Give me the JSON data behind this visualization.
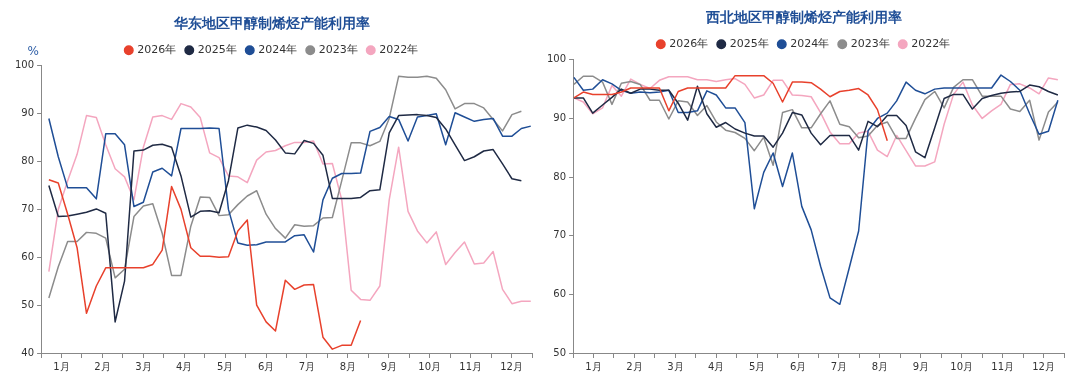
{
  "chart_data": [
    {
      "type": "line",
      "title": "华东地区甲醇制烯烃产能利用率",
      "ylabel": "%",
      "legend": "top",
      "grid": false,
      "marker": "none",
      "line_style": "solid",
      "x": [
        0.19,
        0.42,
        0.65,
        0.88,
        1.11,
        1.35,
        1.58,
        1.81,
        2.04,
        2.27,
        2.5,
        2.73,
        2.96,
        3.19,
        3.42,
        3.66,
        3.89,
        4.12,
        4.35,
        4.58,
        4.81,
        5.04,
        5.27,
        5.5,
        5.73,
        5.97,
        6.2,
        6.43,
        6.66,
        6.89,
        7.12,
        7.35,
        7.58,
        7.81,
        8.04,
        8.28,
        8.51,
        8.74,
        8.97,
        9.2,
        9.43,
        9.66,
        9.89,
        10.12,
        10.35,
        10.59,
        10.82,
        11.05,
        11.28,
        11.51,
        11.74,
        11.97
      ],
      "xlim": [
        0,
        12
      ],
      "xticks": [
        {
          "value": 0,
          "label": null
        },
        {
          "value": 0.5,
          "label": "1月"
        },
        {
          "value": 1,
          "label": null
        },
        {
          "value": 1.5,
          "label": "2月"
        },
        {
          "value": 2,
          "label": null
        },
        {
          "value": 2.5,
          "label": "3月"
        },
        {
          "value": 3,
          "label": null
        },
        {
          "value": 3.5,
          "label": "4月"
        },
        {
          "value": 4,
          "label": null
        },
        {
          "value": 4.5,
          "label": "5月"
        },
        {
          "value": 5,
          "label": null
        },
        {
          "value": 5.5,
          "label": "6月"
        },
        {
          "value": 6,
          "label": null
        },
        {
          "value": 6.5,
          "label": "7月"
        },
        {
          "value": 7,
          "label": null
        },
        {
          "value": 7.5,
          "label": "8月"
        },
        {
          "value": 8,
          "label": null
        },
        {
          "value": 8.5,
          "label": "9月"
        },
        {
          "value": 9,
          "label": null
        },
        {
          "value": 9.5,
          "label": "10月"
        },
        {
          "value": 10,
          "label": null
        },
        {
          "value": 10.5,
          "label": "11月"
        },
        {
          "value": 11,
          "label": null
        },
        {
          "value": 11.5,
          "label": "12月"
        },
        {
          "value": 12,
          "label": null
        }
      ],
      "ylim": [
        40,
        100
      ],
      "yticks": [
        40,
        50,
        60,
        70,
        80,
        90,
        100
      ],
      "series": [
        {
          "name": "2026年",
          "color": "#e8412c",
          "values": [
            76.2,
            75.5,
            69,
            62,
            48.3,
            54,
            57.8,
            57.8,
            57.8,
            57.8,
            57.8,
            58.5,
            61.5,
            74.8,
            70,
            62,
            60.2,
            60.2,
            60,
            60.1,
            65.5,
            67.8,
            50,
            46.5,
            44.6,
            55.2,
            53.3,
            54.2,
            54.3,
            43.3,
            40.8,
            41.6,
            41.6,
            46.8,
            null,
            null,
            null,
            null,
            null,
            null,
            null,
            null,
            null,
            null,
            null,
            null,
            null,
            null,
            null,
            null,
            null,
            null
          ]
        },
        {
          "name": "2025年",
          "color": "#1f2a44",
          "values": [
            75,
            68.5,
            68.6,
            69,
            69.4,
            70.1,
            69.2,
            46.5,
            55,
            82.2,
            82.4,
            83.4,
            83.6,
            83,
            77,
            68.4,
            69.6,
            69.7,
            69.3,
            76,
            87,
            87.6,
            87.2,
            86.5,
            84.5,
            81.8,
            81.6,
            84.4,
            83.8,
            81.3,
            72.3,
            72.3,
            72.3,
            72.5,
            73.9,
            74.1,
            86,
            89.6,
            89.7,
            89.8,
            89.6,
            89.2,
            86.8,
            83.5,
            80.2,
            81,
            82.2,
            82.5,
            79.5,
            76.4,
            76,
            null
          ]
        },
        {
          "name": "2024年",
          "color": "#1f4e96",
          "values": [
            89,
            81,
            74.5,
            74.5,
            74.5,
            72.2,
            85.8,
            85.8,
            83.5,
            70.6,
            71.5,
            77.8,
            78.6,
            77,
            86.9,
            86.9,
            86.9,
            87,
            86.9,
            70,
            63,
            62.5,
            62.6,
            63.2,
            63.2,
            63.2,
            64.5,
            64.7,
            61.1,
            72,
            76.5,
            77.5,
            77.5,
            77.6,
            86.3,
            87.1,
            89.4,
            88.8,
            84.3,
            89.3,
            89.6,
            90,
            83.5,
            90.2,
            89.3,
            88.4,
            88.8,
            89,
            85.3,
            85.3,
            86.9,
            87.4
          ]
        },
        {
          "name": "2023年",
          "color": "#8c8c8c",
          "values": [
            51.5,
            58,
            63.3,
            63.3,
            65.2,
            65,
            64,
            55.7,
            57.5,
            68.5,
            70.7,
            71.2,
            65,
            56.2,
            56.2,
            66.5,
            72.6,
            72.5,
            68.7,
            68.9,
            71,
            72.8,
            73.9,
            69,
            66,
            64,
            66.8,
            66.5,
            66.6,
            68.2,
            68.3,
            76,
            83.9,
            83.9,
            83.3,
            84.2,
            89,
            97.8,
            97.6,
            97.6,
            97.8,
            97.4,
            95,
            91,
            92.1,
            92.1,
            91.2,
            88.8,
            86.4,
            89.8,
            90.5,
            null
          ]
        },
        {
          "name": "2022年",
          "color": "#f4a6bf",
          "values": [
            57,
            70,
            76,
            81.5,
            89.6,
            89.2,
            83.5,
            78.5,
            76.8,
            72,
            83,
            89.3,
            89.6,
            88.8,
            92.1,
            91.4,
            89.2,
            81.8,
            80.8,
            77,
            76.8,
            75.6,
            80.3,
            82,
            82.3,
            83.3,
            84,
            84,
            84.3,
            79.5,
            79.6,
            72,
            53.1,
            51.2,
            51,
            54,
            72,
            83,
            69.6,
            65.5,
            63,
            65.3,
            58.5,
            61,
            63.2,
            58.6,
            58.8,
            61.2,
            53.3,
            50.3,
            50.8,
            50.8
          ]
        }
      ]
    },
    {
      "type": "line",
      "title": "西北地区甲醇制烯烃产能利用率",
      "legend": "top",
      "grid": false,
      "marker": "none",
      "line_style": "solid",
      "x": [
        0.02,
        0.25,
        0.48,
        0.72,
        0.95,
        1.18,
        1.41,
        1.64,
        1.88,
        2.11,
        2.34,
        2.57,
        2.8,
        3.04,
        3.27,
        3.5,
        3.73,
        3.96,
        4.2,
        4.43,
        4.66,
        4.89,
        5.12,
        5.36,
        5.59,
        5.82,
        6.05,
        6.28,
        6.52,
        6.75,
        6.98,
        7.21,
        7.44,
        7.68,
        7.91,
        8.14,
        8.37,
        8.6,
        8.84,
        9.07,
        9.3,
        9.53,
        9.76,
        10,
        10.23,
        10.46,
        10.69,
        10.92,
        11.16,
        11.39,
        11.62,
        11.85
      ],
      "xlim": [
        0,
        12
      ],
      "xticks": [
        {
          "value": 0,
          "label": null
        },
        {
          "value": 0.5,
          "label": "1月"
        },
        {
          "value": 1,
          "label": null
        },
        {
          "value": 1.5,
          "label": "2月"
        },
        {
          "value": 2,
          "label": null
        },
        {
          "value": 2.5,
          "label": "3月"
        },
        {
          "value": 3,
          "label": null
        },
        {
          "value": 3.5,
          "label": "4月"
        },
        {
          "value": 4,
          "label": null
        },
        {
          "value": 4.5,
          "label": "5月"
        },
        {
          "value": 5,
          "label": null
        },
        {
          "value": 5.5,
          "label": "6月"
        },
        {
          "value": 6,
          "label": null
        },
        {
          "value": 6.5,
          "label": "7月"
        },
        {
          "value": 7,
          "label": null
        },
        {
          "value": 7.5,
          "label": "8月"
        },
        {
          "value": 8,
          "label": null
        },
        {
          "value": 8.5,
          "label": "9月"
        },
        {
          "value": 9,
          "label": null
        },
        {
          "value": 9.5,
          "label": "10月"
        },
        {
          "value": 10,
          "label": null
        },
        {
          "value": 10.5,
          "label": "11月"
        },
        {
          "value": 11,
          "label": null
        },
        {
          "value": 11.5,
          "label": "12月"
        },
        {
          "value": 12,
          "label": null
        }
      ],
      "ylim": [
        50,
        100
      ],
      "yticks": [
        50,
        60,
        70,
        80,
        90,
        100
      ],
      "series": [
        {
          "name": "2026年",
          "color": "#e8412c",
          "values": [
            93.5,
            94.5,
            94.1,
            94.1,
            94.1,
            94.5,
            95.2,
            95.2,
            95.2,
            95.2,
            91.3,
            94.6,
            95.2,
            95.2,
            95.2,
            95.2,
            95.2,
            97.3,
            97.3,
            97.3,
            97.3,
            96,
            92.8,
            96.2,
            96.2,
            96.1,
            95,
            93.7,
            94.6,
            94.8,
            95.1,
            94,
            91.5,
            86.2,
            null,
            null,
            null,
            null,
            null,
            null,
            null,
            null,
            null,
            null,
            null,
            null,
            null,
            null,
            null,
            null,
            null,
            null
          ]
        },
        {
          "name": "2025年",
          "color": "#1f2a44",
          "values": [
            93.5,
            93.5,
            90.9,
            92.3,
            93.6,
            95,
            94.3,
            95,
            95,
            94.8,
            94.8,
            92.6,
            89.7,
            95.5,
            90.8,
            88.5,
            89.3,
            88.2,
            87.5,
            87,
            87,
            85.1,
            87.5,
            91,
            90.6,
            87.5,
            85.5,
            87.1,
            87.1,
            87.1,
            84.6,
            89.5,
            88.6,
            90.5,
            90.5,
            88.8,
            84.3,
            83.3,
            88.4,
            93.4,
            94.1,
            94.1,
            91.6,
            93.4,
            93.9,
            94.3,
            94.5,
            94.6,
            95.7,
            95.4,
            94.6,
            94
          ]
        },
        {
          "name": "2024年",
          "color": "#1f4e96",
          "values": [
            97,
            94.8,
            95,
            96.6,
            95.9,
            94.8,
            94.3,
            94.5,
            94.4,
            94.5,
            94.8,
            91,
            91,
            91.3,
            94.7,
            94,
            91.8,
            91.8,
            89.3,
            74.6,
            80.8,
            84.1,
            78.4,
            84.1,
            75,
            71,
            64.8,
            59.4,
            58.3,
            64.5,
            70.8,
            87.9,
            90,
            90.9,
            93,
            96.2,
            94.8,
            94.2,
            95,
            95.2,
            95.2,
            95.2,
            95.2,
            95.2,
            95.2,
            97.4,
            96.3,
            94.8,
            90.8,
            87.3,
            87.8,
            93.1
          ]
        },
        {
          "name": "2023年",
          "color": "#8c8c8c",
          "values": [
            95.8,
            97.2,
            97.2,
            96.2,
            92.4,
            96,
            96.3,
            95.8,
            93.1,
            93.1,
            89.9,
            93,
            92.8,
            90.5,
            92.2,
            89.4,
            88,
            87.6,
            86.6,
            84.5,
            86.8,
            82,
            91,
            91.5,
            88.4,
            88.4,
            90.8,
            93,
            89,
            88.6,
            86.7,
            87,
            88.8,
            89.4,
            86.6,
            86.6,
            90,
            93.2,
            94.6,
            91.8,
            95.3,
            96.6,
            96.6,
            93.8,
            93.8,
            93.8,
            91.6,
            91.2,
            93.1,
            86.3,
            91.1,
            92.8
          ]
        },
        {
          "name": "2022年",
          "color": "#f4a6bf",
          "values": [
            93.5,
            92.8,
            90.8,
            91.8,
            95.6,
            93.8,
            96.7,
            95.8,
            95.1,
            96.5,
            97.1,
            97.1,
            97.1,
            96.6,
            96.6,
            96.3,
            96.6,
            96.8,
            95.8,
            93.5,
            94,
            96.5,
            96.5,
            94,
            93.9,
            93.7,
            91,
            87.7,
            85.7,
            85.7,
            87.5,
            87.8,
            84.6,
            83.5,
            87.1,
            84.5,
            81.9,
            81.9,
            82.6,
            89,
            94.1,
            96.2,
            92.3,
            90,
            91.3,
            92.4,
            95.8,
            95.9,
            95.2,
            94.2,
            96.9,
            96.6
          ]
        }
      ]
    }
  ]
}
